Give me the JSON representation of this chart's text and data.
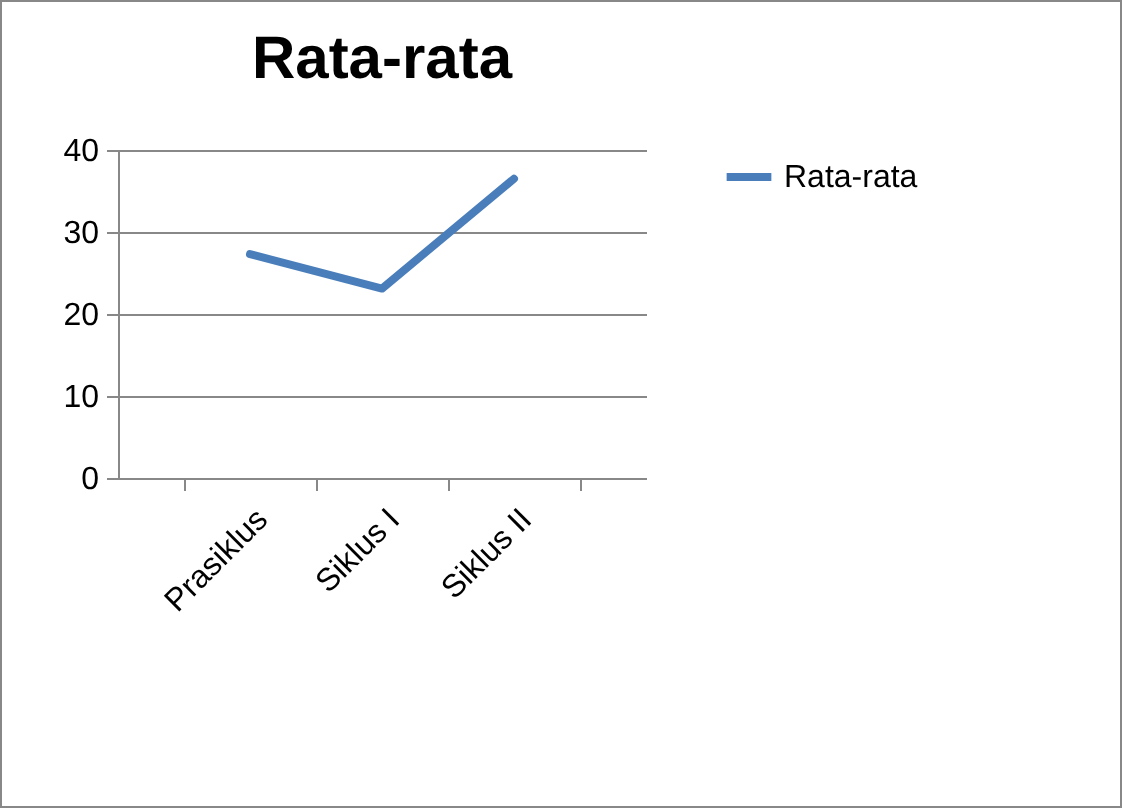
{
  "chart_data": {
    "type": "line",
    "title": "Rata-rata",
    "categories": [
      "Prasiklus",
      "Siklus I",
      "Siklus II"
    ],
    "series": [
      {
        "name": "Rata-rata",
        "color": "#4a7ebb",
        "values": [
          27.3,
          23.1,
          36.5
        ]
      }
    ],
    "ylim": [
      0,
      40
    ],
    "yticks": [
      0,
      10,
      20,
      30,
      40
    ],
    "grid": "y",
    "legend": "right",
    "marker": "none",
    "line_style": "solid"
  }
}
